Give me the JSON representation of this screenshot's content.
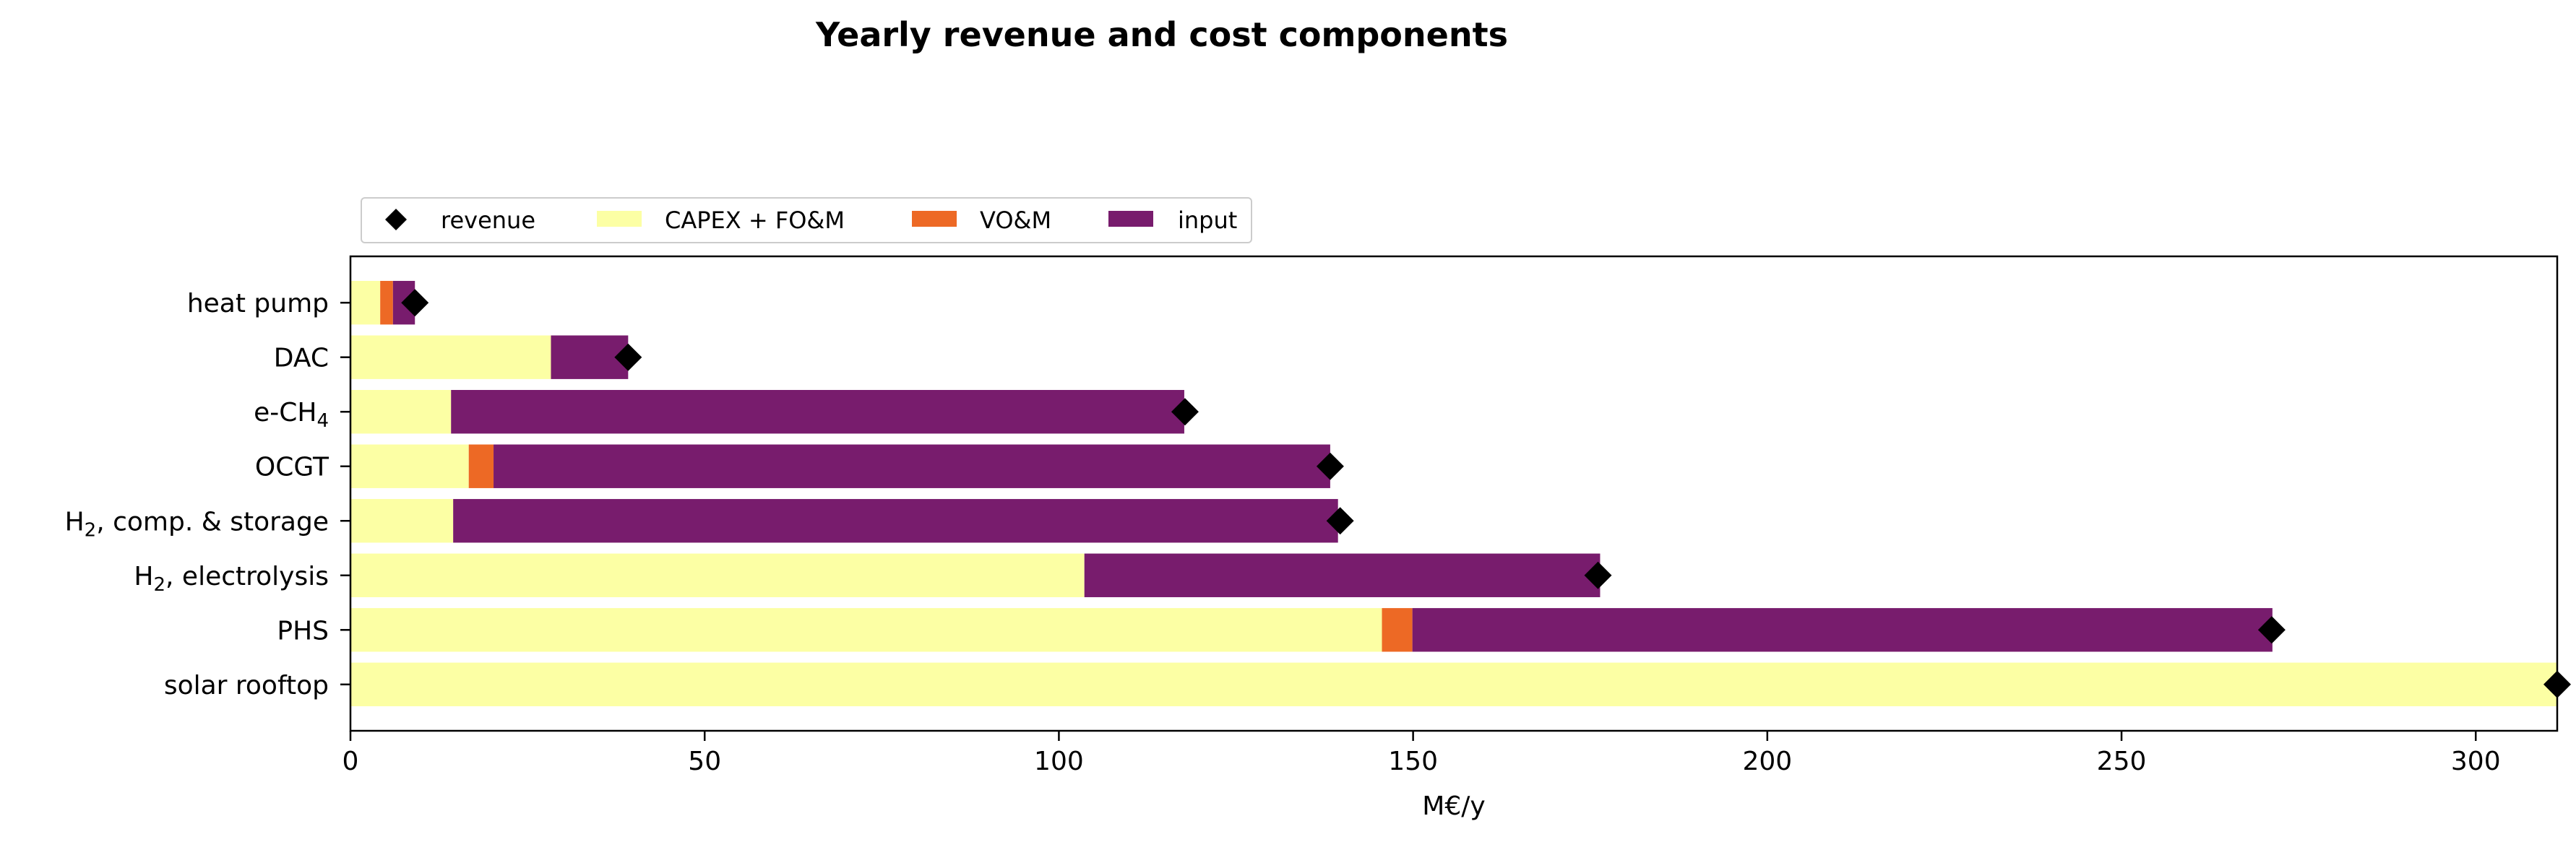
{
  "chart_data": {
    "type": "bar",
    "orientation": "horizontal",
    "stacked": true,
    "title": "Yearly revenue and cost components",
    "xlabel": "M€/y",
    "ylabel": "",
    "xlim": [
      0,
      311.5
    ],
    "xticks": [
      0,
      50,
      100,
      150,
      200,
      250,
      300
    ],
    "grid": false,
    "legend_position": "top-left, above plot",
    "categories": [
      {
        "main": "heat pump",
        "sub": "",
        "tail": ""
      },
      {
        "main": "DAC",
        "sub": "",
        "tail": ""
      },
      {
        "main": "e-CH",
        "sub": "4",
        "tail": ""
      },
      {
        "main": "OCGT",
        "sub": "",
        "tail": ""
      },
      {
        "main": "H",
        "sub": "2",
        "tail": ", comp. & storage"
      },
      {
        "main": "H",
        "sub": "2",
        "tail": ", electrolysis"
      },
      {
        "main": "PHS",
        "sub": "",
        "tail": ""
      },
      {
        "main": "solar rooftop",
        "sub": "",
        "tail": ""
      }
    ],
    "series": [
      {
        "name": "CAPEX + FO&M",
        "color": "#fcffa4",
        "values": [
          4.2,
          28.3,
          14.2,
          16.7,
          14.5,
          103.6,
          145.6,
          311.5
        ]
      },
      {
        "name": "VO&M",
        "color": "#ed6925",
        "values": [
          1.8,
          0,
          0,
          3.5,
          0,
          0,
          4.3,
          0
        ]
      },
      {
        "name": "input",
        "color": "#781c6d",
        "values": [
          3.1,
          10.9,
          103.5,
          118.1,
          124.9,
          72.8,
          121.4,
          0
        ]
      }
    ],
    "revenue": {
      "name": "revenue",
      "color": "#000000",
      "values": [
        9.1,
        39.2,
        117.8,
        138.3,
        139.7,
        176.1,
        271.2,
        311.5
      ]
    }
  }
}
